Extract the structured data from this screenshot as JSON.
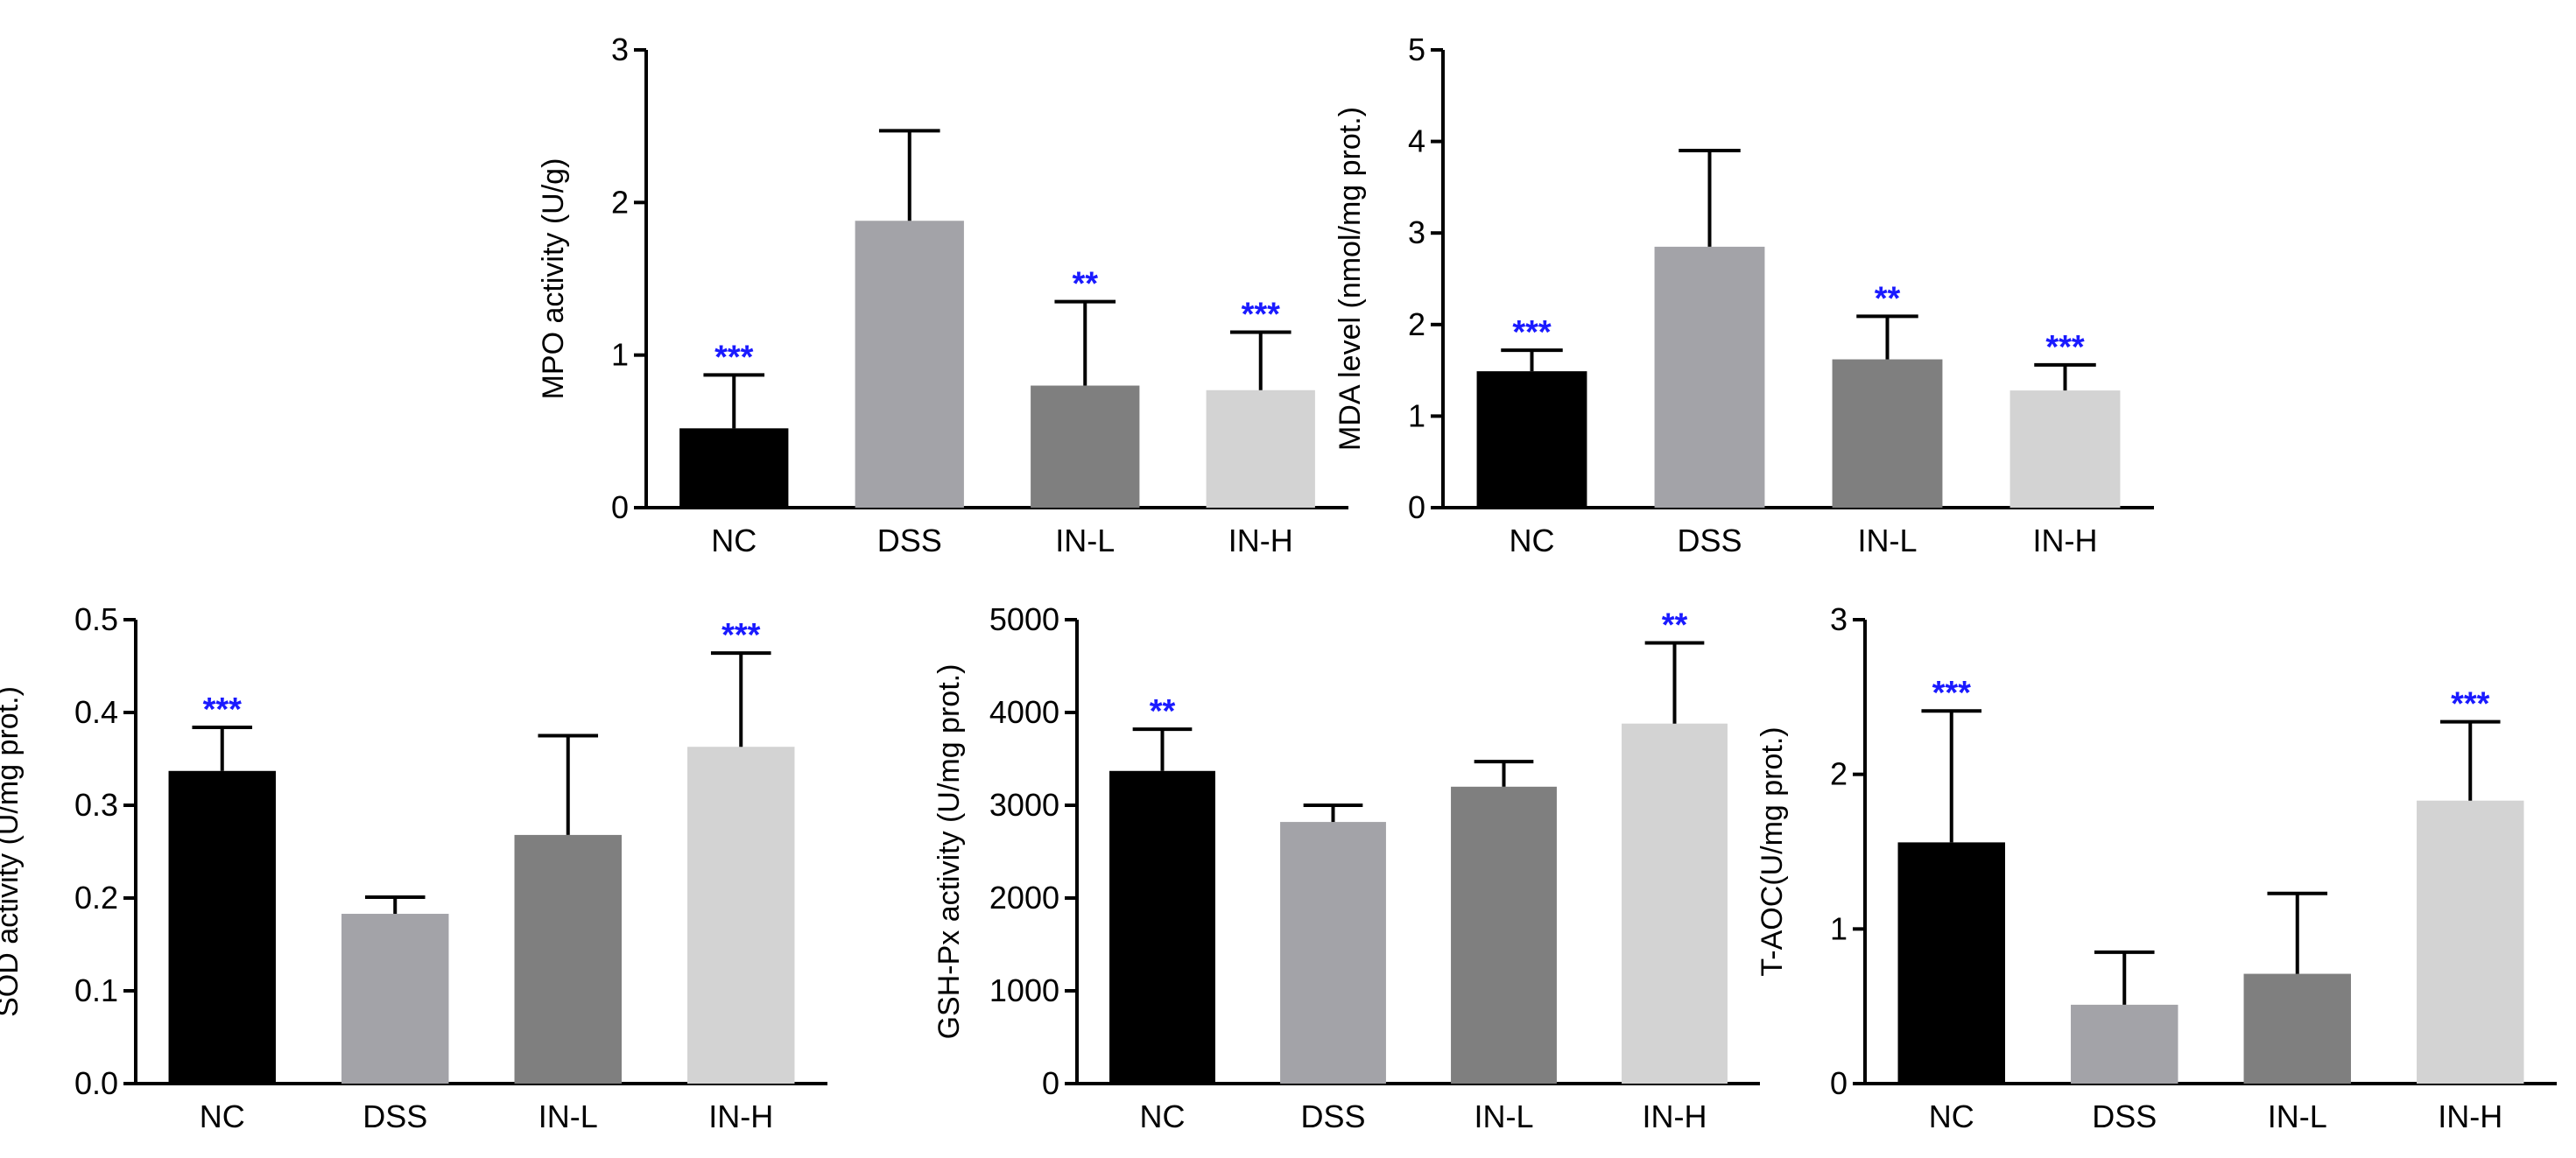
{
  "colors": {
    "NC": "#000000",
    "DSS": "#a3a3a8",
    "IN-L": "#7f7f7f",
    "IN-H": "#d3d3d3",
    "significance": "#1a1aff",
    "axis": "#000000"
  },
  "chart_data": [
    {
      "type": "bar",
      "categories": [
        "NC",
        "DSS",
        "IN-L",
        "IN-H"
      ],
      "values": [
        0.52,
        1.88,
        0.8,
        0.77
      ],
      "errors": [
        0.35,
        0.59,
        0.55,
        0.38
      ],
      "significance": [
        "***",
        "",
        "**",
        "***"
      ],
      "ylabel": "MPO activity (U/g)",
      "ylim": [
        0,
        3
      ],
      "yticks": [
        "0",
        "1",
        "2",
        "3"
      ],
      "grid": false
    },
    {
      "type": "bar",
      "categories": [
        "NC",
        "DSS",
        "IN-L",
        "IN-H"
      ],
      "values": [
        1.49,
        2.85,
        1.62,
        1.28
      ],
      "errors": [
        0.23,
        1.05,
        0.47,
        0.28
      ],
      "significance": [
        "***",
        "",
        "**",
        "***"
      ],
      "ylabel": "MDA level (nmol/mg prot.)",
      "ylim": [
        0,
        5
      ],
      "yticks": [
        "0",
        "1",
        "2",
        "3",
        "4",
        "5"
      ],
      "grid": false
    },
    {
      "type": "bar",
      "categories": [
        "NC",
        "DSS",
        "IN-L",
        "IN-H"
      ],
      "values": [
        0.337,
        0.183,
        0.268,
        0.363
      ],
      "errors": [
        0.047,
        0.018,
        0.107,
        0.101
      ],
      "significance": [
        "***",
        "",
        "",
        "***"
      ],
      "ylabel": "SOD activity (U/mg prot.)",
      "ylim": [
        0,
        0.5
      ],
      "yticks": [
        "0.0",
        "0.1",
        "0.2",
        "0.3",
        "0.4",
        "0.5"
      ],
      "grid": false
    },
    {
      "type": "bar",
      "categories": [
        "NC",
        "DSS",
        "IN-L",
        "IN-H"
      ],
      "values": [
        3370,
        2820,
        3200,
        3880
      ],
      "errors": [
        450,
        180,
        270,
        870
      ],
      "significance": [
        "**",
        "",
        "",
        "**"
      ],
      "ylabel": "GSH-Px activity (U/mg prot.)",
      "ylim": [
        0,
        5000
      ],
      "yticks": [
        "0",
        "1000",
        "2000",
        "3000",
        "4000",
        "5000"
      ],
      "grid": false
    },
    {
      "type": "bar",
      "categories": [
        "NC",
        "DSS",
        "IN-L",
        "IN-H"
      ],
      "values": [
        1.56,
        0.51,
        0.71,
        1.83
      ],
      "errors": [
        0.85,
        0.34,
        0.52,
        0.51
      ],
      "significance": [
        "***",
        "",
        "",
        "***"
      ],
      "ylabel": "T-AOC(U/mg prot.)",
      "ylim": [
        0,
        3
      ],
      "yticks": [
        "0",
        "1",
        "2",
        "3"
      ],
      "grid": false
    }
  ]
}
